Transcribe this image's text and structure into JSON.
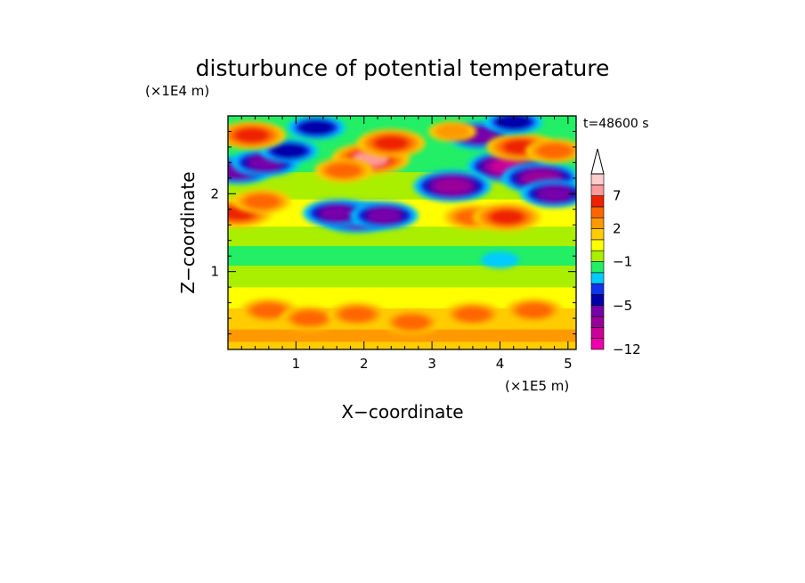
{
  "chart_data": {
    "type": "heatmap",
    "title": "disturbunce of potential temperature",
    "time_label": "t=48600 s",
    "xlabel": "X−coordinate",
    "ylabel": "Z−coordinate",
    "x_unit": "(×1E5 m)",
    "y_unit": "(×1E4 m)",
    "x_ticks": [
      "1",
      "2",
      "3",
      "4",
      "5"
    ],
    "y_ticks": [
      "1",
      "2"
    ],
    "xlim": [
      0,
      5.12
    ],
    "ylim": [
      0,
      3.0
    ],
    "grid": false,
    "colorbar": {
      "position": "right",
      "extend": "max",
      "tick_labels": [
        "−12",
        "−5",
        "−1",
        "2",
        "7"
      ],
      "colors": [
        "#ee00aa",
        "#cc0099",
        "#990099",
        "#7700aa",
        "#0000aa",
        "#1133ee",
        "#00ccff",
        "#22ee66",
        "#aaee00",
        "#ffff00",
        "#ffcc00",
        "#ff9900",
        "#ff6600",
        "#ee2200",
        "#ff9999",
        "#ffcccc"
      ]
    },
    "bands": [
      {
        "z": [
          0.0,
          0.12
        ],
        "value": 2
      },
      {
        "z": [
          0.12,
          0.28
        ],
        "value": 3
      },
      {
        "z": [
          0.28,
          0.55
        ],
        "value": 2
      },
      {
        "z": [
          0.55,
          0.82
        ],
        "value": 1
      },
      {
        "z": [
          0.82,
          1.1
        ],
        "value": 0
      },
      {
        "z": [
          1.1,
          1.35
        ],
        "value": -1
      },
      {
        "z": [
          1.35,
          1.6
        ],
        "value": 0
      },
      {
        "z": [
          1.6,
          1.95
        ],
        "value": 1
      },
      {
        "z": [
          1.95,
          2.3
        ],
        "value": 0
      },
      {
        "z": [
          2.3,
          3.0
        ],
        "value": -1
      }
    ],
    "anomalies": [
      {
        "x": 2.1,
        "z": 2.45,
        "value": 7
      },
      {
        "x": 1.7,
        "z": 2.3,
        "value": 4
      },
      {
        "x": 2.4,
        "z": 2.65,
        "value": 5
      },
      {
        "x": 1.9,
        "z": 1.7,
        "value": -6
      },
      {
        "x": 1.6,
        "z": 1.75,
        "value": -5
      },
      {
        "x": 2.3,
        "z": 1.72,
        "value": -5
      },
      {
        "x": 4.1,
        "z": 2.35,
        "value": -8
      },
      {
        "x": 4.6,
        "z": 2.2,
        "value": -7
      },
      {
        "x": 3.3,
        "z": 2.1,
        "value": -6
      },
      {
        "x": 3.7,
        "z": 2.75,
        "value": -5
      },
      {
        "x": 4.8,
        "z": 2.0,
        "value": -5
      },
      {
        "x": 0.15,
        "z": 2.3,
        "value": -5
      },
      {
        "x": 0.55,
        "z": 2.4,
        "value": -5
      },
      {
        "x": 0.9,
        "z": 2.55,
        "value": -4
      },
      {
        "x": 1.3,
        "z": 2.85,
        "value": -4
      },
      {
        "x": 3.6,
        "z": 1.7,
        "value": 4
      },
      {
        "x": 4.1,
        "z": 1.7,
        "value": 5
      },
      {
        "x": 4.3,
        "z": 2.6,
        "value": 5
      },
      {
        "x": 4.8,
        "z": 2.55,
        "value": 4
      },
      {
        "x": 0.15,
        "z": 1.75,
        "value": 5
      },
      {
        "x": 0.5,
        "z": 1.9,
        "value": 4
      },
      {
        "x": 0.35,
        "z": 2.75,
        "value": 5
      },
      {
        "x": 3.3,
        "z": 2.8,
        "value": 3
      },
      {
        "x": 4.2,
        "z": 2.92,
        "value": -4
      },
      {
        "x": 4.0,
        "z": 1.15,
        "value": -2
      },
      {
        "x": 0.6,
        "z": 0.5,
        "value": 4
      },
      {
        "x": 1.2,
        "z": 0.4,
        "value": 4
      },
      {
        "x": 1.9,
        "z": 0.45,
        "value": 4
      },
      {
        "x": 2.7,
        "z": 0.35,
        "value": 4
      },
      {
        "x": 3.6,
        "z": 0.45,
        "value": 4
      },
      {
        "x": 4.5,
        "z": 0.5,
        "value": 4
      }
    ]
  }
}
